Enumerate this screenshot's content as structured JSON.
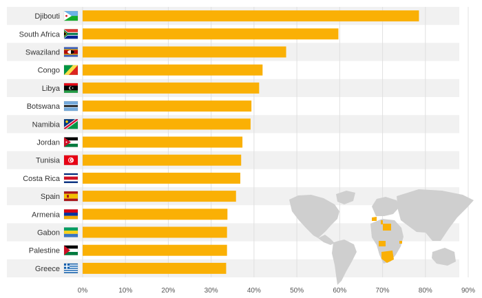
{
  "chart_data": {
    "type": "bar",
    "orientation": "horizontal",
    "title": "",
    "xlabel": "",
    "ylabel": "",
    "categories": [
      "Djibouti",
      "South Africa",
      "Swaziland",
      "Congo",
      "Libya",
      "Botswana",
      "Namibia",
      "Jordan",
      "Tunisia",
      "Costa Rica",
      "Spain",
      "Armenia",
      "Gabon",
      "Palestine",
      "Greece"
    ],
    "values": [
      78.5,
      59.7,
      47.5,
      42.0,
      41.2,
      39.4,
      39.2,
      37.3,
      37.0,
      36.8,
      35.8,
      33.8,
      33.7,
      33.7,
      33.5
    ],
    "xlim": [
      0,
      90
    ],
    "xticks": [
      0,
      10,
      20,
      30,
      40,
      50,
      60,
      70,
      80,
      90
    ],
    "tick_format": "%",
    "grid": true,
    "bar_color": "#fab005",
    "band_color": "#f1f1f1",
    "flag_icons": [
      "djibouti-flag-icon",
      "south-africa-flag-icon",
      "swaziland-flag-icon",
      "congo-flag-icon",
      "libya-flag-icon",
      "botswana-flag-icon",
      "namibia-flag-icon",
      "jordan-flag-icon",
      "tunisia-flag-icon",
      "costa-rica-flag-icon",
      "spain-flag-icon",
      "armenia-flag-icon",
      "gabon-flag-icon",
      "palestine-flag-icon",
      "greece-flag-icon"
    ],
    "inset_map": {
      "icon": "world-map-icon",
      "land_color": "#cfcfcf",
      "highlight_color": "#fab005"
    }
  }
}
